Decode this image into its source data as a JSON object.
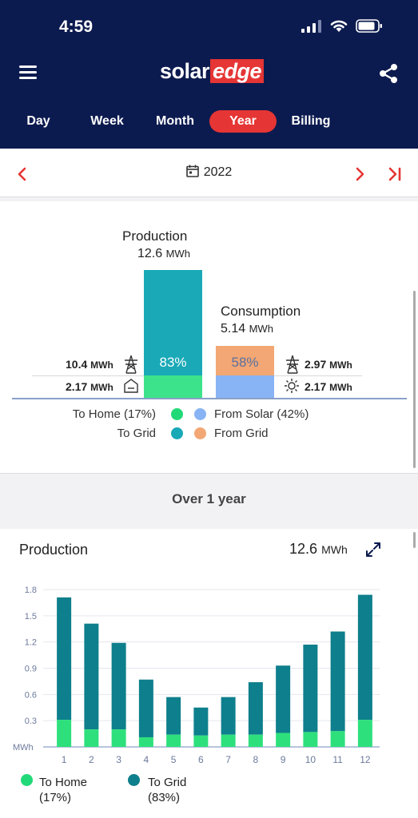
{
  "status": {
    "time": "4:59"
  },
  "brand": {
    "solar": "solar",
    "edge": "edge"
  },
  "tabs": [
    "Day",
    "Week",
    "Month",
    "Year",
    "Billing"
  ],
  "active_tab": "Year",
  "date": {
    "label": "2022"
  },
  "summary": {
    "production_title": "Production",
    "production_value": "12.6",
    "production_unit": "MWh",
    "production_pct": "83%",
    "consumption_title": "Consumption",
    "consumption_value": "5.14",
    "consumption_unit": "MWh",
    "consumption_pct": "58%",
    "left_top_value": "10.4",
    "left_top_unit": "MWh",
    "left_bottom_value": "2.17",
    "left_bottom_unit": "MWh",
    "right_top_value": "2.97",
    "right_top_unit": "MWh",
    "right_bottom_value": "2.17",
    "right_bottom_unit": "MWh",
    "legend": {
      "to_home": "To Home (17%)",
      "to_grid": "To Grid",
      "from_solar": "From Solar (42%)",
      "from_grid": "From Grid"
    }
  },
  "period": {
    "label": "Over 1 year"
  },
  "production_card": {
    "title": "Production",
    "value": "12.6",
    "unit": "MWh"
  },
  "colors": {
    "header": "#0c1b4f",
    "accent": "#e53534",
    "to_home": "#2ee07c",
    "to_grid": "#0e7f8c",
    "teal_bar": "#19a9b7",
    "from_grid": "#f2a774",
    "from_solar": "#88b3f4"
  },
  "chart_data": {
    "type": "bar",
    "stacked": true,
    "categories": [
      "1",
      "2",
      "3",
      "4",
      "5",
      "6",
      "7",
      "8",
      "9",
      "10",
      "11",
      "12"
    ],
    "series": [
      {
        "name": "To Home",
        "values": [
          0.31,
          0.2,
          0.2,
          0.11,
          0.14,
          0.13,
          0.14,
          0.14,
          0.16,
          0.17,
          0.18,
          0.31
        ]
      },
      {
        "name": "To Grid",
        "values": [
          1.4,
          1.21,
          0.99,
          0.66,
          0.43,
          0.32,
          0.43,
          0.6,
          0.77,
          1.0,
          1.14,
          1.43
        ]
      }
    ],
    "ylabel": "MWh",
    "yticks": [
      "0.3",
      "0.6",
      "0.9",
      "1.2",
      "1.5",
      "1.8"
    ],
    "ylim": [
      0,
      1.8
    ],
    "grid": true,
    "legend": [
      {
        "label": "To Home",
        "sub": "(17%)"
      },
      {
        "label": "To Grid",
        "sub": "(83%)"
      }
    ]
  }
}
